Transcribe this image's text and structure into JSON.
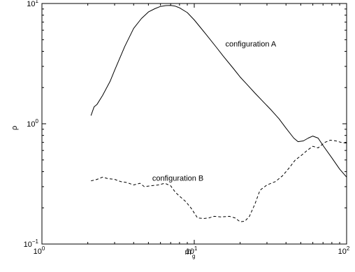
{
  "chart_data": {
    "type": "line",
    "title": "",
    "xlabel": "r/r",
    "xlabel_subscript": "g",
    "ylabel": "ρ",
    "x_scale": "log",
    "y_scale": "log",
    "xlim": [
      1,
      100
    ],
    "ylim": [
      0.1,
      10
    ],
    "grid": false,
    "x_ticks": [
      {
        "base": "10",
        "exp": "0",
        "value": 1
      },
      {
        "base": "10",
        "exp": "1",
        "value": 10
      },
      {
        "base": "10",
        "exp": "2",
        "value": 100
      }
    ],
    "y_ticks": [
      {
        "base": "10",
        "exp": "−1",
        "value": 0.1
      },
      {
        "base": "10",
        "exp": "0",
        "value": 1
      },
      {
        "base": "10",
        "exp": "1",
        "value": 10
      }
    ],
    "series": [
      {
        "name": "configuration A",
        "style": "solid",
        "color": "#000000",
        "points": [
          [
            2.1,
            1.17
          ],
          [
            2.2,
            1.38
          ],
          [
            2.3,
            1.45
          ],
          [
            2.5,
            1.72
          ],
          [
            2.8,
            2.25
          ],
          [
            3.0,
            2.78
          ],
          [
            3.5,
            4.4
          ],
          [
            4.0,
            6.2
          ],
          [
            4.5,
            7.5
          ],
          [
            5.0,
            8.5
          ],
          [
            5.5,
            9.05
          ],
          [
            6.0,
            9.45
          ],
          [
            6.5,
            9.6
          ],
          [
            7.0,
            9.65
          ],
          [
            7.5,
            9.5
          ],
          [
            8.0,
            9.2
          ],
          [
            9.0,
            8.4
          ],
          [
            10.0,
            7.3
          ],
          [
            11.0,
            6.3
          ],
          [
            12.0,
            5.5
          ],
          [
            14.0,
            4.3
          ],
          [
            15.5,
            3.65
          ],
          [
            18.0,
            2.9
          ],
          [
            20.0,
            2.45
          ],
          [
            22.0,
            2.15
          ],
          [
            25.0,
            1.8
          ],
          [
            28.0,
            1.55
          ],
          [
            32.0,
            1.3
          ],
          [
            36.0,
            1.1
          ],
          [
            40.0,
            0.92
          ],
          [
            45.0,
            0.76
          ],
          [
            48.0,
            0.71
          ],
          [
            52.0,
            0.72
          ],
          [
            56.0,
            0.76
          ],
          [
            60.0,
            0.79
          ],
          [
            65.0,
            0.76
          ],
          [
            70.0,
            0.66
          ],
          [
            80.0,
            0.52
          ],
          [
            90.0,
            0.42
          ],
          [
            100.0,
            0.36
          ]
        ]
      },
      {
        "name": "configuration B",
        "style": "dashed",
        "color": "#000000",
        "points": [
          [
            2.1,
            0.335
          ],
          [
            2.3,
            0.345
          ],
          [
            2.5,
            0.36
          ],
          [
            2.7,
            0.35
          ],
          [
            3.0,
            0.345
          ],
          [
            3.3,
            0.33
          ],
          [
            3.6,
            0.325
          ],
          [
            4.0,
            0.31
          ],
          [
            4.4,
            0.32
          ],
          [
            4.7,
            0.3
          ],
          [
            5.2,
            0.305
          ],
          [
            5.8,
            0.31
          ],
          [
            6.4,
            0.32
          ],
          [
            7.0,
            0.305
          ],
          [
            7.5,
            0.27
          ],
          [
            8.0,
            0.25
          ],
          [
            8.8,
            0.225
          ],
          [
            9.5,
            0.2
          ],
          [
            10.5,
            0.165
          ],
          [
            11.5,
            0.163
          ],
          [
            12.5,
            0.165
          ],
          [
            13.5,
            0.17
          ],
          [
            15.0,
            0.168
          ],
          [
            17.0,
            0.17
          ],
          [
            18.5,
            0.165
          ],
          [
            20.0,
            0.153
          ],
          [
            21.5,
            0.155
          ],
          [
            23.0,
            0.17
          ],
          [
            25.0,
            0.215
          ],
          [
            27.0,
            0.28
          ],
          [
            30.0,
            0.31
          ],
          [
            34.0,
            0.33
          ],
          [
            38.0,
            0.37
          ],
          [
            42.0,
            0.43
          ],
          [
            46.0,
            0.5
          ],
          [
            50.0,
            0.54
          ],
          [
            55.0,
            0.6
          ],
          [
            60.0,
            0.65
          ],
          [
            65.0,
            0.63
          ],
          [
            72.0,
            0.7
          ],
          [
            78.0,
            0.73
          ],
          [
            85.0,
            0.72
          ],
          [
            92.0,
            0.7
          ],
          [
            100.0,
            0.69
          ]
        ]
      }
    ],
    "annotations": [
      {
        "text": "configuration A",
        "x": 16,
        "y": 4.4
      },
      {
        "text": "configuration B",
        "x": 5.3,
        "y": 0.335
      }
    ]
  }
}
